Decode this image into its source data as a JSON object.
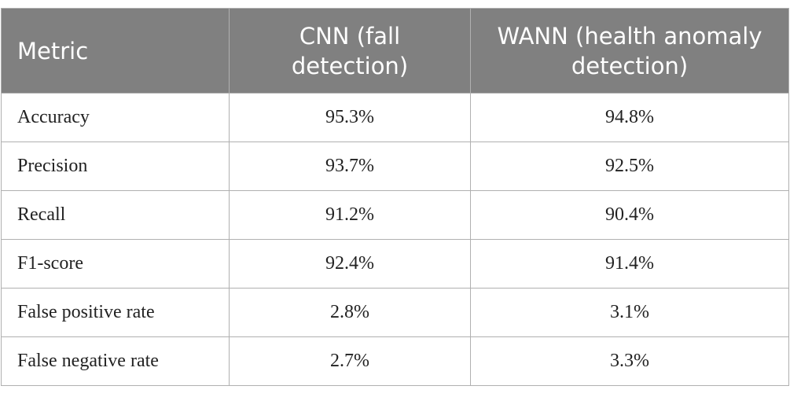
{
  "table": {
    "header": [
      "Metric",
      "CNN (fall detection)",
      "WANN (health anomaly detection)"
    ],
    "rows": [
      [
        "Accuracy",
        "95.3%",
        "94.8%"
      ],
      [
        "Precision",
        "93.7%",
        "92.5%"
      ],
      [
        "Recall",
        "91.2%",
        "90.4%"
      ],
      [
        "F1-score",
        "92.4%",
        "91.4%"
      ],
      [
        "False positive rate",
        "2.8%",
        "3.1%"
      ],
      [
        "False negative rate",
        "2.7%",
        "3.3%"
      ]
    ]
  }
}
